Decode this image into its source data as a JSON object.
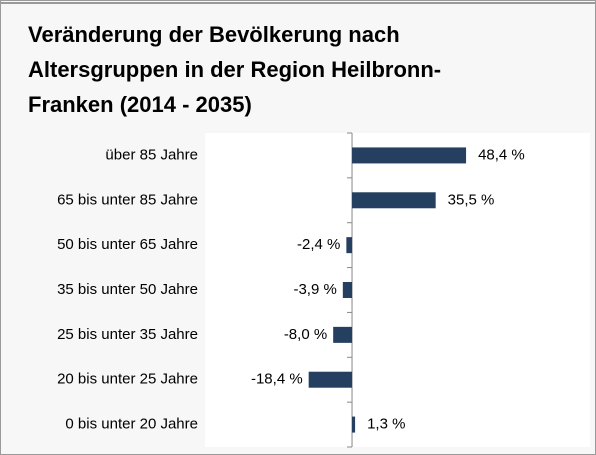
{
  "chart_data": {
    "type": "bar",
    "orientation": "horizontal",
    "title": [
      "Veränderung der Bevölkerung nach",
      "Altersgruppen in der Region Heilbronn-",
      "Franken (2014 - 2035)"
    ],
    "categories": [
      "über 85 Jahre",
      "65 bis unter 85 Jahre",
      "50 bis unter 65 Jahre",
      "35 bis unter 50 Jahre",
      "25 bis unter 35 Jahre",
      "20 bis unter 25 Jahre",
      "0 bis unter 20 Jahre"
    ],
    "values": [
      48.4,
      35.5,
      -2.4,
      -3.9,
      -8.0,
      -18.4,
      1.3
    ],
    "value_labels": [
      "48,4 %",
      "35,5 %",
      "-2,4 %",
      "-3,9 %",
      "-8,0 %",
      "-18,4 %",
      "1,3 %"
    ],
    "color": "#243f60",
    "xlim": [
      -62.4,
      101
    ]
  }
}
